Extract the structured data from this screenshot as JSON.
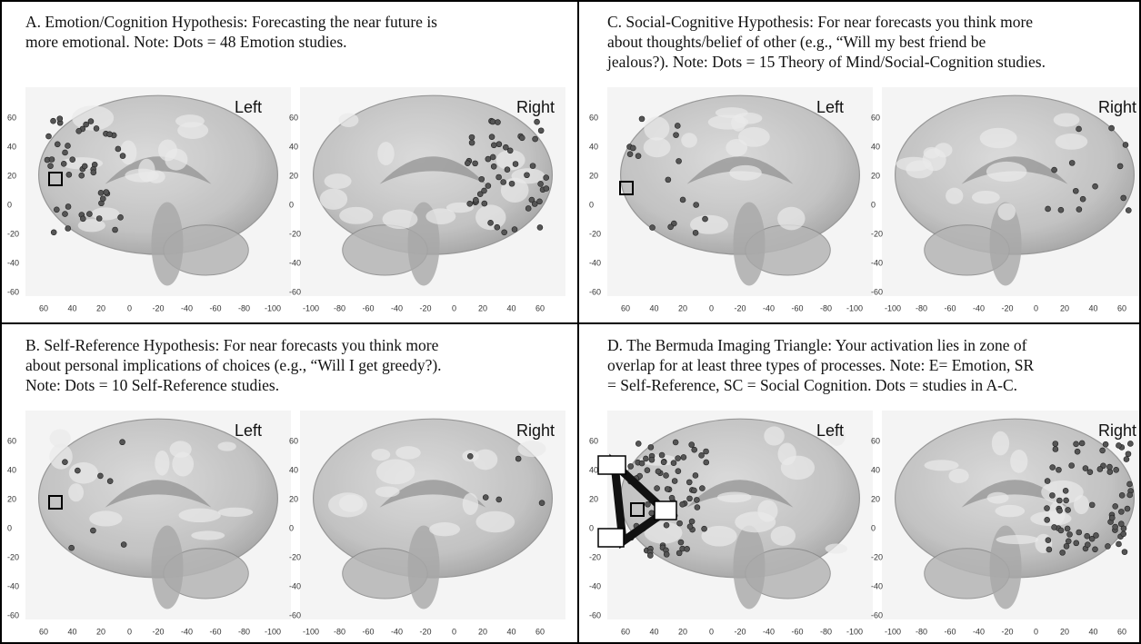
{
  "panels": [
    {
      "caption": [
        "A. Emotion/Cognition Hypothesis: Forecasting the near future is",
        "more emotional. Note: Dots = 48 Emotion studies."
      ],
      "left_label": "Left",
      "right_label": "Right",
      "left_yticks": [
        60,
        40,
        20,
        0,
        -20,
        -40,
        -60
      ],
      "left_xticks": [
        60,
        40,
        20,
        0,
        -20,
        -40,
        -60,
        -80,
        -100
      ],
      "right_yticks": [
        60,
        40,
        20,
        0,
        -20,
        -40,
        -60
      ],
      "right_xticks": [
        -100,
        -80,
        -60,
        -40,
        -20,
        0,
        20,
        40,
        60
      ]
    },
    {
      "caption": [
        "C. Social-Cognitive Hypothesis: For near forecasts you think more",
        "about thoughts/belief of other (e.g., “Will my best friend be",
        "jealous?). Note: Dots = 15 Theory of Mind/Social-Cognition studies."
      ],
      "left_label": "Left",
      "right_label": "Right",
      "left_yticks": [
        60,
        40,
        20,
        0,
        -20,
        -40,
        -60
      ],
      "left_xticks": [
        60,
        40,
        20,
        0,
        -20,
        -40,
        -60,
        -80,
        -100
      ],
      "right_yticks": [
        60,
        40,
        20,
        0,
        -20,
        -40,
        -60
      ],
      "right_xticks": [
        -100,
        -80,
        -60,
        -40,
        -20,
        0,
        20,
        40,
        60
      ]
    },
    {
      "caption": [
        "B. Self-Reference Hypothesis: For near forecasts you think more",
        "about personal implications of choices (e.g., “Will I get greedy?).",
        "Note: Dots = 10 Self-Reference studies."
      ],
      "left_label": "Left",
      "right_label": "Right",
      "left_yticks": [
        60,
        40,
        20,
        0,
        -20,
        -40,
        -60
      ],
      "left_xticks": [
        60,
        40,
        20,
        0,
        -20,
        -40,
        -60,
        -80,
        -100
      ],
      "right_yticks": [
        60,
        40,
        20,
        0,
        -20,
        -40,
        -60
      ],
      "right_xticks": [
        -100,
        -80,
        -60,
        -40,
        -20,
        0,
        20,
        40,
        60
      ]
    },
    {
      "caption": [
        "D. The Bermuda Imaging Triangle: Your activation lies in zone of",
        "overlap for at least three types of processes.  Note: E= Emotion, SR",
        "= Self-Reference, SC = Social Cognition. Dots = studies in A-C."
      ],
      "left_label": "Left",
      "right_label": "Right",
      "left_yticks": [
        60,
        40,
        20,
        0,
        -20,
        -40,
        -60
      ],
      "left_xticks": [
        60,
        40,
        20,
        0,
        -20,
        -40,
        -60,
        -80,
        -100
      ],
      "right_yticks": [
        60,
        40,
        20,
        0,
        -20,
        -40,
        -60
      ],
      "right_xticks": [
        -100,
        -80,
        -60,
        -40,
        -20,
        0,
        20,
        40,
        60
      ]
    }
  ]
}
